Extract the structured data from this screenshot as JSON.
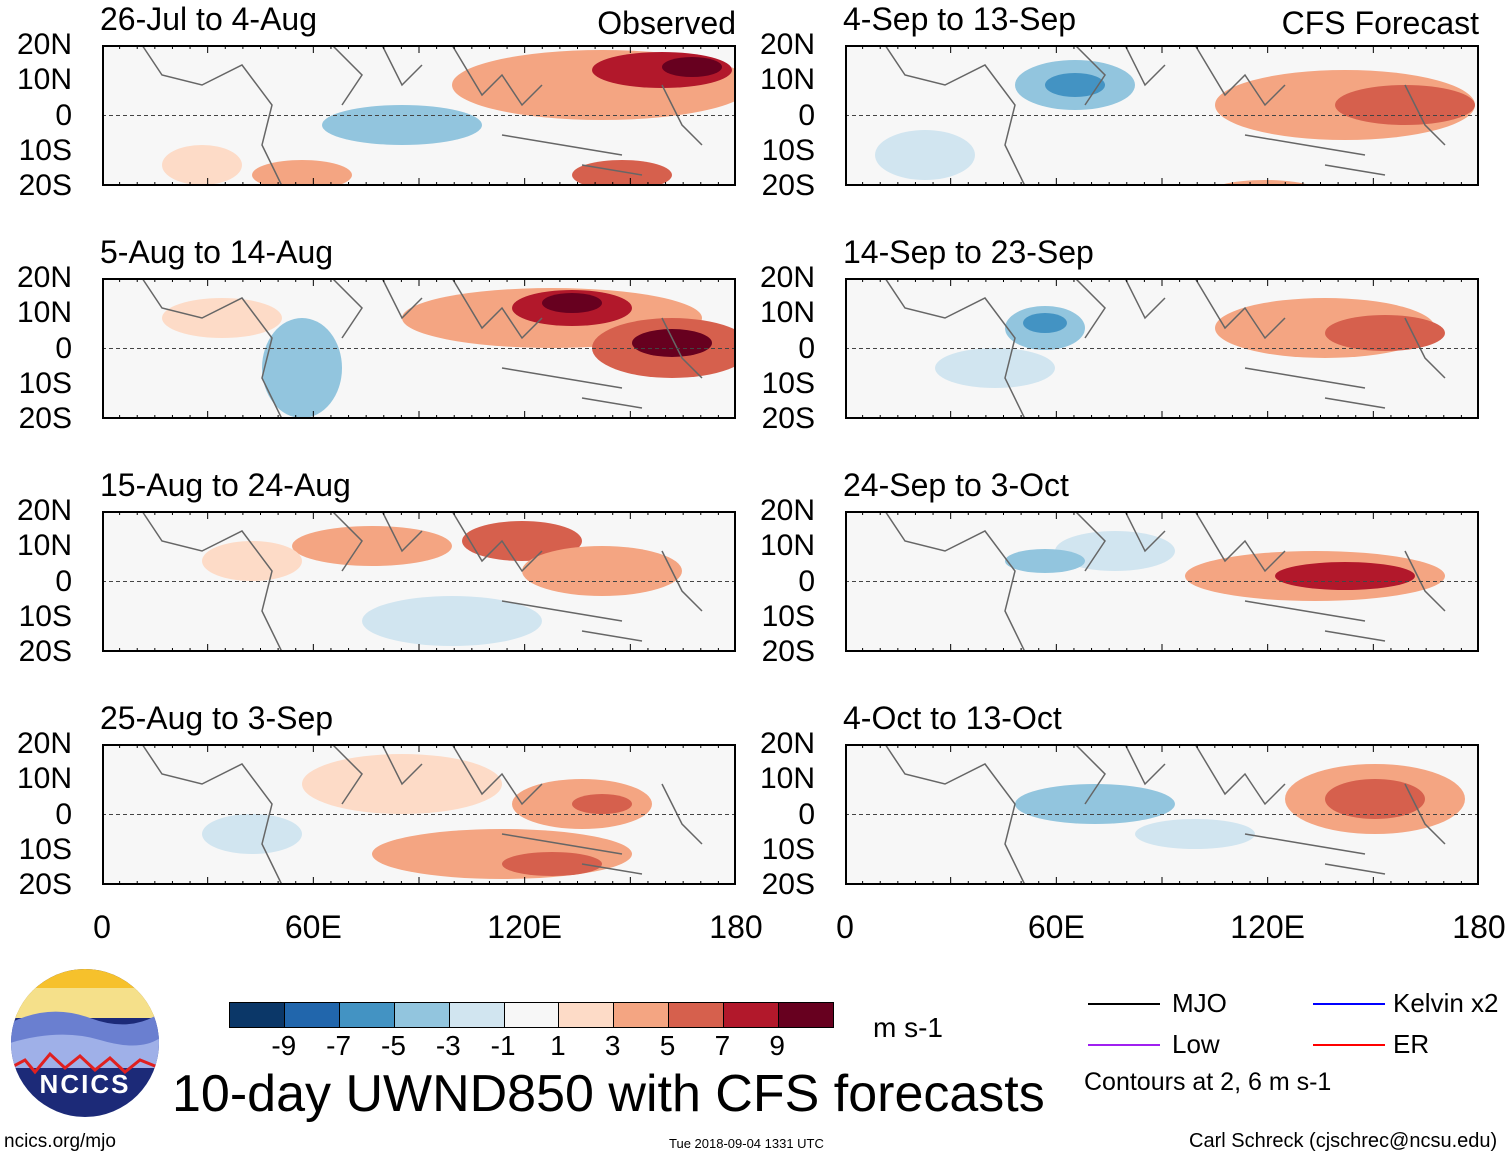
{
  "panels": [
    {
      "title": "26-Jul to 4-Aug",
      "label": "Observed"
    },
    {
      "title": "4-Sep to 13-Sep",
      "label": "CFS Forecast"
    },
    {
      "title": "5-Aug to 14-Aug",
      "label": ""
    },
    {
      "title": "14-Sep to 23-Sep",
      "label": ""
    },
    {
      "title": "15-Aug to 24-Aug",
      "label": ""
    },
    {
      "title": "24-Sep to 3-Oct",
      "label": ""
    },
    {
      "title": "25-Aug to 3-Sep",
      "label": ""
    },
    {
      "title": "4-Oct to 13-Oct",
      "label": ""
    }
  ],
  "lat_labels": [
    "20N",
    "10N",
    "0",
    "10S",
    "20S"
  ],
  "lon_labels": [
    "0",
    "60E",
    "120E",
    "180"
  ],
  "colorbar": {
    "colors": [
      "#0b3768",
      "#2166ac",
      "#4393c3",
      "#92c5de",
      "#d1e5f0",
      "#f7f7f7",
      "#fddbc7",
      "#f4a582",
      "#d6604d",
      "#b2182b",
      "#67001f"
    ],
    "labels": [
      "-9",
      "-7",
      "-5",
      "-3",
      "-1",
      "1",
      "3",
      "5",
      "7",
      "9"
    ],
    "units": "m s-1"
  },
  "title": "10-day UWND850 with CFS forecasts",
  "logo_text": "NCICS",
  "website": "ncics.org/mjo",
  "timestamp": "Tue 2018-09-04 1331 UTC",
  "author": "Carl Schreck (cjschrec@ncsu.edu)",
  "legend": {
    "items": [
      {
        "label": "MJO",
        "color": "#000000"
      },
      {
        "label": "Kelvin x2",
        "color": "#0000ff"
      },
      {
        "label": "Low",
        "color": "#a020f0"
      },
      {
        "label": "ER",
        "color": "#ff0000"
      }
    ],
    "note": "Contours at 2, 6 m s-1"
  }
}
